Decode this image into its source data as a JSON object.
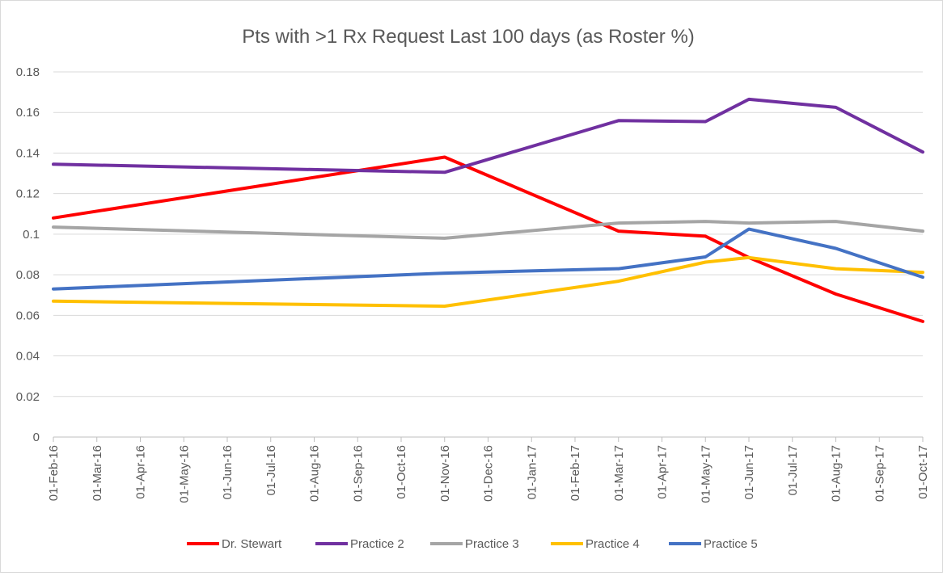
{
  "chart_data": {
    "type": "line",
    "title": "Pts with >1 Rx Request Last 100 days (as Roster %)",
    "xlabel": "",
    "ylabel": "",
    "ylim": [
      0,
      0.18
    ],
    "yticks": [
      "0",
      "0.02",
      "0.04",
      "0.06",
      "0.08",
      "0.1",
      "0.12",
      "0.14",
      "0.16",
      "0.18"
    ],
    "grid": true,
    "legend_position": "bottom",
    "x": [
      "01-Feb-16",
      "01-Mar-16",
      "01-Apr-16",
      "01-May-16",
      "01-Jun-16",
      "01-Jul-16",
      "01-Aug-16",
      "01-Sep-16",
      "01-Oct-16",
      "01-Nov-16",
      "01-Dec-16",
      "01-Jan-17",
      "01-Feb-17",
      "01-Mar-17",
      "01-Apr-17",
      "01-May-17",
      "01-Jun-17",
      "01-Jul-17",
      "01-Aug-17",
      "01-Sep-17",
      "01-Oct-17"
    ],
    "series": [
      {
        "name": "Dr. Stewart",
        "color": "#ff0000",
        "points": [
          [
            "01-Feb-16",
            0.108
          ],
          [
            "01-Nov-16",
            0.138
          ],
          [
            "01-Mar-17",
            0.1015
          ],
          [
            "01-May-17",
            0.099
          ],
          [
            "01-Jun-17",
            0.0885
          ],
          [
            "01-Aug-17",
            0.0705
          ],
          [
            "01-Oct-17",
            0.057
          ]
        ]
      },
      {
        "name": "Practice 2",
        "color": "#7030a0",
        "points": [
          [
            "01-Feb-16",
            0.1345
          ],
          [
            "01-Nov-16",
            0.1305
          ],
          [
            "01-Mar-17",
            0.156
          ],
          [
            "01-May-17",
            0.1555
          ],
          [
            "01-Jun-17",
            0.1665
          ],
          [
            "01-Aug-17",
            0.1625
          ],
          [
            "01-Oct-17",
            0.1405
          ]
        ]
      },
      {
        "name": "Practice 3",
        "color": "#a5a5a5",
        "points": [
          [
            "01-Feb-16",
            0.1035
          ],
          [
            "01-Nov-16",
            0.098
          ],
          [
            "01-Mar-17",
            0.1055
          ],
          [
            "01-May-17",
            0.1063
          ],
          [
            "01-Jun-17",
            0.1055
          ],
          [
            "01-Aug-17",
            0.1063
          ],
          [
            "01-Oct-17",
            0.1015
          ]
        ]
      },
      {
        "name": "Practice 4",
        "color": "#ffc000",
        "points": [
          [
            "01-Feb-16",
            0.067
          ],
          [
            "01-Nov-16",
            0.0645
          ],
          [
            "01-Mar-17",
            0.0768
          ],
          [
            "01-May-17",
            0.0862
          ],
          [
            "01-Jun-17",
            0.0885
          ],
          [
            "01-Aug-17",
            0.083
          ],
          [
            "01-Oct-17",
            0.0812
          ]
        ]
      },
      {
        "name": "Practice 5",
        "color": "#4472c4",
        "points": [
          [
            "01-Feb-16",
            0.073
          ],
          [
            "01-Nov-16",
            0.0808
          ],
          [
            "01-Mar-17",
            0.083
          ],
          [
            "01-May-17",
            0.0888
          ],
          [
            "01-Jun-17",
            0.1025
          ],
          [
            "01-Aug-17",
            0.093
          ],
          [
            "01-Oct-17",
            0.0788
          ]
        ]
      }
    ]
  }
}
